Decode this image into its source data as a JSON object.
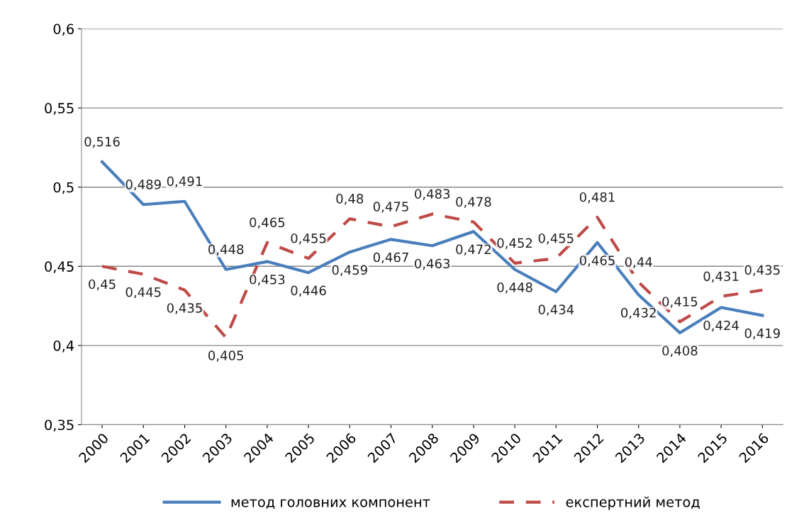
{
  "chart_data": {
    "type": "line",
    "categories": [
      "2000",
      "2001",
      "2002",
      "2003",
      "2004",
      "2005",
      "2006",
      "2007",
      "2008",
      "2009",
      "2010",
      "2011",
      "2012",
      "2013",
      "2014",
      "2015",
      "2016"
    ],
    "series": [
      {
        "name": "метод головних компонент",
        "color": "#4a7ebb",
        "line_style": "solid",
        "values": [
          0.516,
          0.489,
          0.491,
          0.448,
          0.453,
          0.446,
          0.459,
          0.467,
          0.463,
          0.472,
          0.448,
          0.434,
          0.465,
          0.432,
          0.408,
          0.424,
          0.419
        ],
        "value_labels": [
          "0,516",
          "0,489",
          "0,491",
          "0,448",
          "0,453",
          "0,446",
          "0,459",
          "0,467",
          "0,463",
          "0,472",
          "0,448",
          "0,434",
          "0,465",
          "0,432",
          "0,408",
          "0,424",
          "0,419"
        ]
      },
      {
        "name": "експертний метод",
        "color": "#be4b48",
        "line_style": "dashed",
        "values": [
          0.45,
          0.445,
          0.435,
          0.405,
          0.465,
          0.455,
          0.48,
          0.475,
          0.483,
          0.478,
          0.452,
          0.455,
          0.481,
          0.44,
          0.415,
          0.431,
          0.435
        ],
        "value_labels": [
          "0,45",
          "0,445",
          "0,435",
          "0,405",
          "0,465",
          "0,455",
          "0,48",
          "0,475",
          "0,483",
          "0,478",
          "0,452",
          "0,455",
          "0,481",
          "0,44",
          "0,415",
          "0,431",
          "0,435"
        ]
      }
    ],
    "ylim": [
      0.35,
      0.6
    ],
    "yticks": [
      {
        "value": 0.35,
        "label": "0,35"
      },
      {
        "value": 0.4,
        "label": "0,4"
      },
      {
        "value": 0.45,
        "label": "0,45"
      },
      {
        "value": 0.5,
        "label": "0,5"
      },
      {
        "value": 0.55,
        "label": "0,55"
      },
      {
        "value": 0.6,
        "label": "0,6"
      }
    ],
    "grid": "y",
    "legend": "bottom",
    "marker": "none"
  }
}
